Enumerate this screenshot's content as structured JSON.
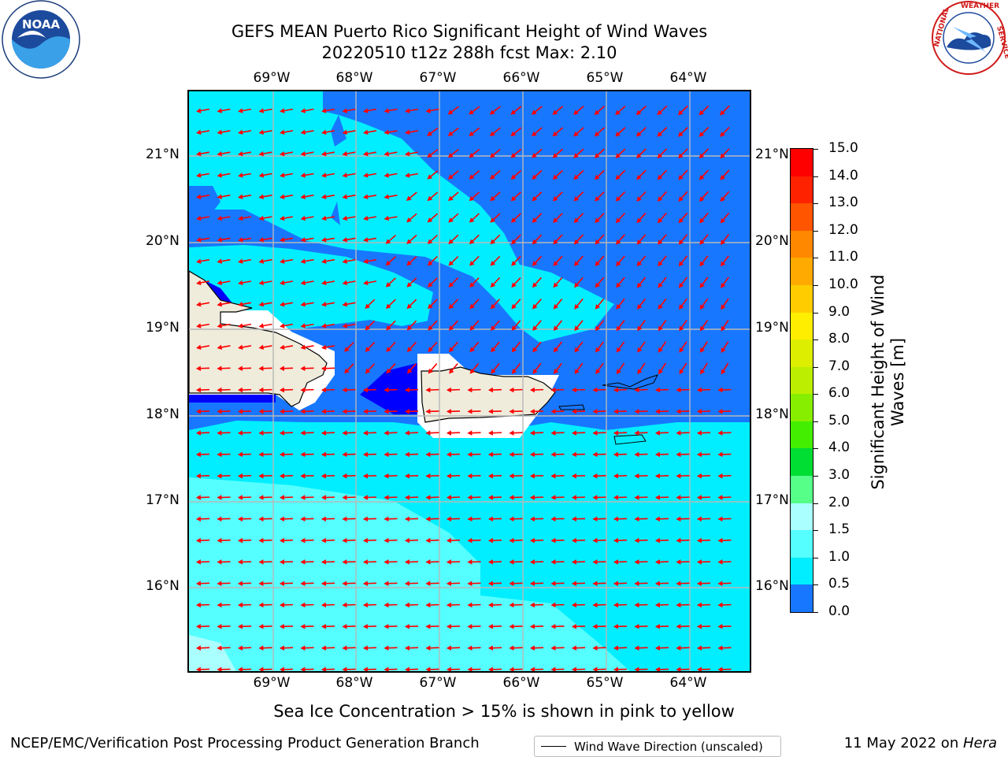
{
  "header": {
    "title_line1": "GEFS MEAN Puerto Rico Significant Height of Wind Waves",
    "title_line2": "20220510 t12z 288h fcst   Max: 2.10"
  },
  "map": {
    "lon_labels": [
      "69°W",
      "68°W",
      "67°W",
      "66°W",
      "65°W",
      "64°W"
    ],
    "lat_labels": [
      "21°N",
      "20°N",
      "19°N",
      "18°N",
      "17°N",
      "16°N"
    ],
    "land_color": "#efecdc",
    "arrow_color": "#ff0000",
    "wind_direction_description": "mostly westward, NE swirl in north"
  },
  "legend": {
    "label": "Wind Wave Direction (unscaled)"
  },
  "colorbar": {
    "title": "Significant Height of Wind Waves [m]",
    "tick_labels": [
      "15.0",
      "14.0",
      "13.0",
      "12.0",
      "11.0",
      "10.0",
      "9.0",
      "8.0",
      "7.0",
      "6.0",
      "5.0",
      "4.0",
      "3.0",
      "2.0",
      "1.5",
      "1.0",
      "0.5",
      "0.0"
    ],
    "colors": [
      "#ff0000",
      "#ff2200",
      "#ff5500",
      "#ff8800",
      "#ffaa00",
      "#ffcc00",
      "#ffee00",
      "#ddee00",
      "#bbee00",
      "#88ee00",
      "#44ee00",
      "#00dd33",
      "#55ff88",
      "#aaffff",
      "#55ffff",
      "#00eeff",
      "#1877ff",
      "#0000ff"
    ]
  },
  "note": "Sea Ice Concentration > 15% is shown in pink to yellow",
  "footer": {
    "left": "NCEP/EMC/Verification Post Processing Product Generation Branch",
    "right_prefix": "11 May 2022 on ",
    "right_machine": "Hera"
  },
  "logos": {
    "noaa_text": "NOAA",
    "noaa_ring": "NATIONAL OCEANIC AND ATMOSPHERIC ADMINISTRATION · U.S. DEPARTMENT OF COMMERCE",
    "nws_ring": "NATIONAL WEATHER SERVICE"
  }
}
